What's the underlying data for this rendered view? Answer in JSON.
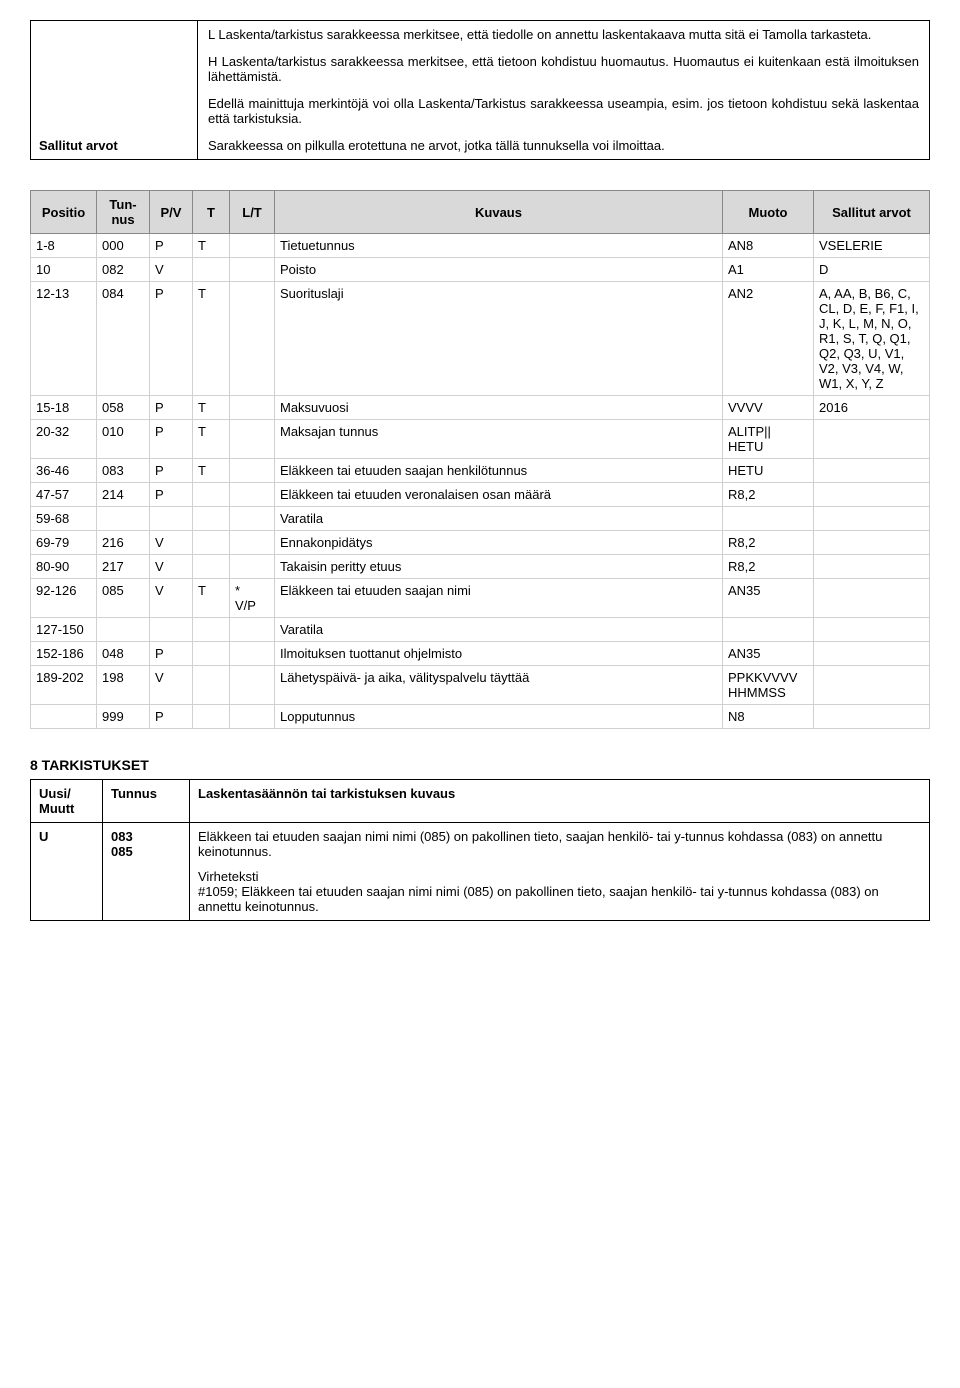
{
  "topBox": {
    "leftLabel": "Sallitut arvot",
    "paras": [
      "L Laskenta/tarkistus sarakkeessa merkitsee, että tiedolle on annettu laskentakaava mutta sitä ei Tamolla tarkasteta.",
      "H Laskenta/tarkistus sarakkeessa merkitsee, että tietoon kohdistuu huomautus. Huomautus ei kuitenkaan estä ilmoituksen lähettämistä.",
      "Edellä mainittuja merkintöjä voi olla Laskenta/Tarkistus sarakkeessa useampia, esim. jos tietoon kohdistuu sekä laskentaa että tarkistuksia.",
      "Sarakkeessa on pilkulla erotettuna ne arvot, jotka tällä tunnuksella voi ilmoittaa."
    ]
  },
  "headers": {
    "positio": "Positio",
    "tunnus": "Tun-\nnus",
    "pv": "P/V",
    "t": "T",
    "lt": "L/T",
    "kuvaus": "Kuvaus",
    "muoto": "Muoto",
    "sallitut": "Sallitut arvot"
  },
  "rows": [
    {
      "positio": "1-8",
      "tunnus": "000",
      "pv": "P",
      "t": "T",
      "lt": "",
      "kuvaus": "Tietuetunnus",
      "muoto": "AN8",
      "sallitut": "VSELERIE"
    },
    {
      "positio": "10",
      "tunnus": "082",
      "pv": "V",
      "t": "",
      "lt": "",
      "kuvaus": "Poisto",
      "muoto": "A1",
      "sallitut": "D"
    },
    {
      "positio": "12-13",
      "tunnus": "084",
      "pv": "P",
      "t": "T",
      "lt": "",
      "kuvaus": "Suorituslaji",
      "muoto": "AN2",
      "sallitut": "A, AA, B, B6, C, CL, D, E, F, F1, I, J, K, L, M, N, O, R1, S, T, Q, Q1, Q2, Q3, U, V1, V2, V3, V4, W, W1, X, Y, Z"
    },
    {
      "positio": "15-18",
      "tunnus": "058",
      "pv": "P",
      "t": "T",
      "lt": "",
      "kuvaus": "Maksuvuosi",
      "muoto": "VVVV",
      "sallitut": "2016"
    },
    {
      "positio": "20-32",
      "tunnus": "010",
      "pv": "P",
      "t": "T",
      "lt": "",
      "kuvaus": "Maksajan tunnus",
      "muoto": "ALITP||\nHETU",
      "sallitut": ""
    },
    {
      "positio": "36-46",
      "tunnus": "083",
      "pv": "P",
      "t": "T",
      "lt": "",
      "kuvaus": "Eläkkeen tai etuuden saajan henkilötunnus",
      "muoto": "HETU",
      "sallitut": ""
    },
    {
      "positio": "47-57",
      "tunnus": "214",
      "pv": "P",
      "t": "",
      "lt": "",
      "kuvaus": "Eläkkeen tai etuuden veronalaisen osan määrä",
      "muoto": "R8,2",
      "sallitut": ""
    },
    {
      "positio": "59-68",
      "tunnus": "",
      "pv": "",
      "t": "",
      "lt": "",
      "kuvaus": "Varatila",
      "muoto": "",
      "sallitut": ""
    },
    {
      "positio": "69-79",
      "tunnus": "216",
      "pv": "V",
      "t": "",
      "lt": "",
      "kuvaus": "Ennakonpidätys",
      "muoto": "R8,2",
      "sallitut": ""
    },
    {
      "positio": "80-90",
      "tunnus": "217",
      "pv": "V",
      "t": "",
      "lt": "",
      "kuvaus": "Takaisin peritty etuus",
      "muoto": "R8,2",
      "sallitut": ""
    },
    {
      "positio": "92-126",
      "tunnus": "085",
      "pv": "V",
      "t": "T",
      "lt": "*\nV/P",
      "kuvaus": "Eläkkeen tai etuuden saajan nimi",
      "muoto": "AN35",
      "sallitut": ""
    },
    {
      "positio": "127-150",
      "tunnus": "",
      "pv": "",
      "t": "",
      "lt": "",
      "kuvaus": "Varatila",
      "muoto": "",
      "sallitut": ""
    },
    {
      "positio": "152-186",
      "tunnus": "048",
      "pv": "P",
      "t": "",
      "lt": "",
      "kuvaus": "Ilmoituksen tuottanut ohjelmisto",
      "muoto": "AN35",
      "sallitut": ""
    },
    {
      "positio": "189-202",
      "tunnus": "198",
      "pv": "V",
      "t": "",
      "lt": "",
      "kuvaus": "Lähetyspäivä- ja aika, välityspalvelu täyttää",
      "muoto": "PPKKVVVV\nHHMMSS",
      "sallitut": ""
    },
    {
      "positio": "",
      "tunnus": "999",
      "pv": "P",
      "t": "",
      "lt": "",
      "kuvaus": "Lopputunnus",
      "muoto": "N8",
      "sallitut": ""
    }
  ],
  "section8": {
    "heading": "8    TARKISTUKSET",
    "headers": {
      "c1": "Uusi/\nMuutt",
      "c2": "Tunnus",
      "c3": "Laskentasäännön tai tarkistuksen kuvaus"
    },
    "row": {
      "c1": "U",
      "c2": "083\n085",
      "paras": [
        "Eläkkeen tai etuuden saajan nimi nimi (085) on pakollinen tieto, saajan henkilö- tai y-tunnus kohdassa (083) on annettu keinotunnus.",
        "Virheteksti\n#1059; Eläkkeen tai etuuden saajan nimi nimi (085) on pakollinen tieto, saajan henkilö- tai y-tunnus kohdassa (083) on annettu keinotunnus."
      ]
    }
  }
}
